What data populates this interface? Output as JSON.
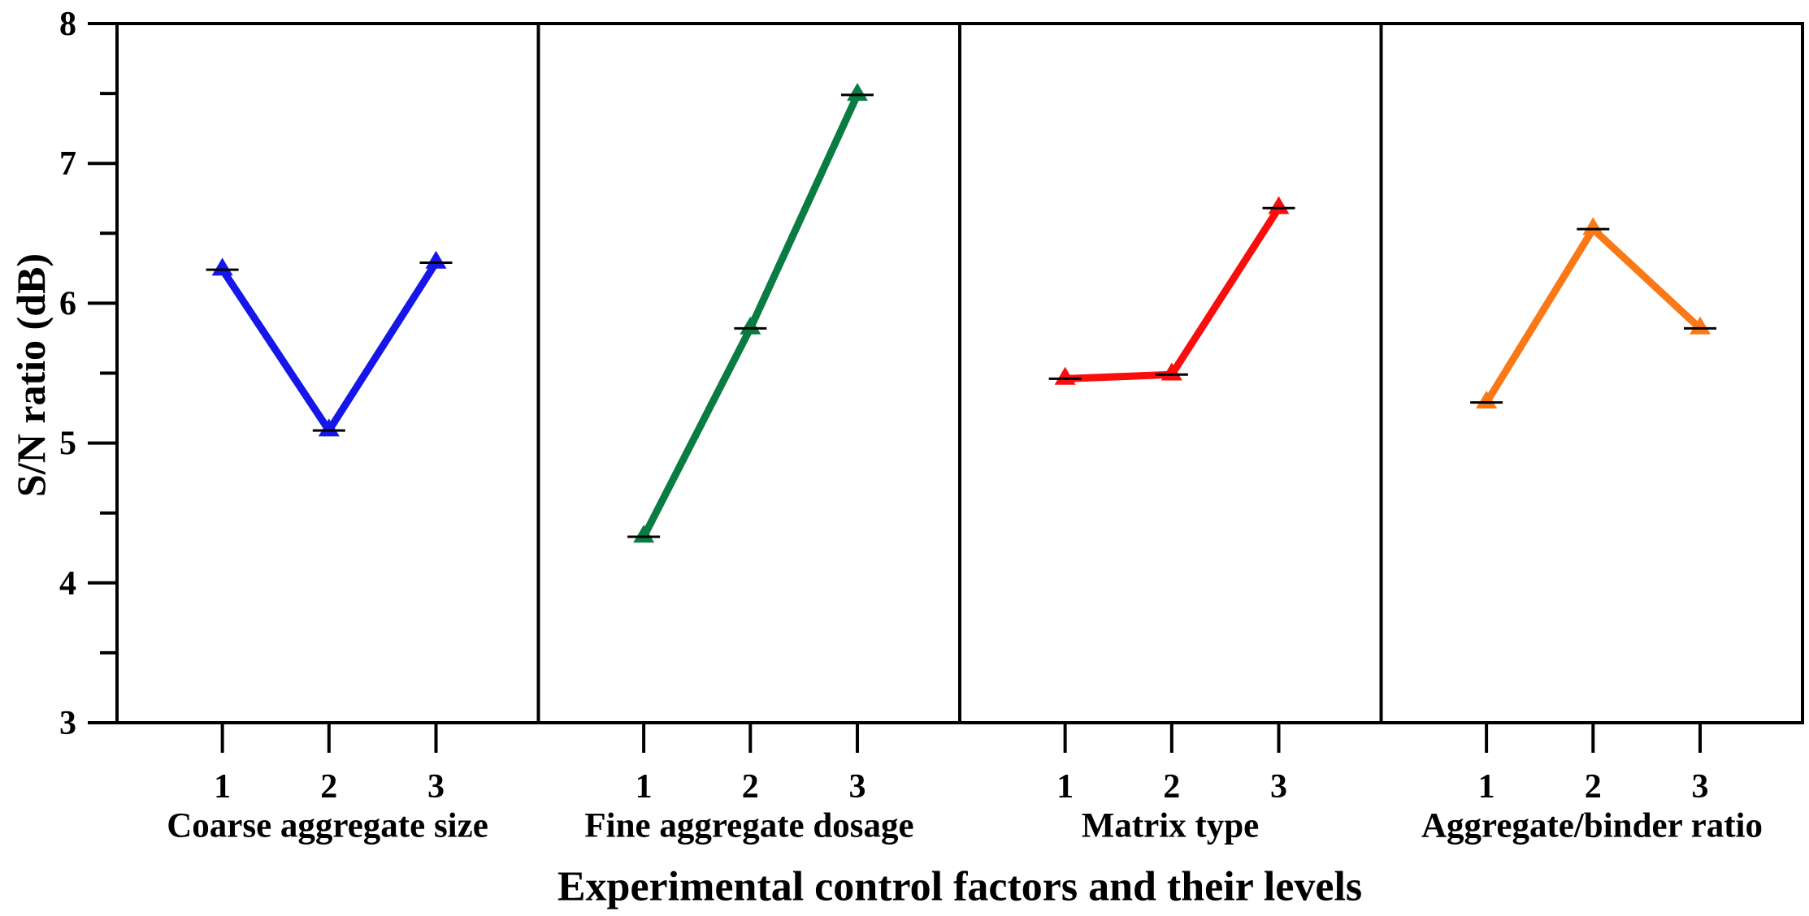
{
  "figure": {
    "background": "#ffffff",
    "axis_color": "#000000"
  },
  "chart_data": {
    "type": "line",
    "title": "",
    "xlabel": "Experimental control factors and their levels",
    "ylabel": "S/N ratio (dB)",
    "ylim": [
      3,
      8
    ],
    "y_major_ticks": [
      8,
      7,
      6,
      5,
      4,
      3
    ],
    "y_minor_ticks": [
      7.5,
      6.5,
      5.5,
      4.5,
      3.5
    ],
    "categories": [
      "1",
      "2",
      "3"
    ],
    "grid": false,
    "legend": false,
    "marker": "triangle-up",
    "error_caps": true,
    "panels": [
      {
        "caption": "Coarse aggregate size",
        "color": "#1616E8",
        "levels": [
          1,
          2,
          3
        ],
        "values": [
          6.24,
          5.09,
          6.29
        ]
      },
      {
        "caption": "Fine aggregate dosage",
        "color": "#097C43",
        "levels": [
          1,
          2,
          3
        ],
        "values": [
          4.33,
          5.82,
          7.49
        ]
      },
      {
        "caption": "Matrix type",
        "color": "#F90D0D",
        "levels": [
          1,
          2,
          3
        ],
        "values": [
          5.46,
          5.49,
          6.68
        ]
      },
      {
        "caption": "Aggregate/binder ratio",
        "color": "#FA7816",
        "levels": [
          1,
          2,
          3
        ],
        "values": [
          5.29,
          6.53,
          5.82
        ]
      }
    ]
  }
}
